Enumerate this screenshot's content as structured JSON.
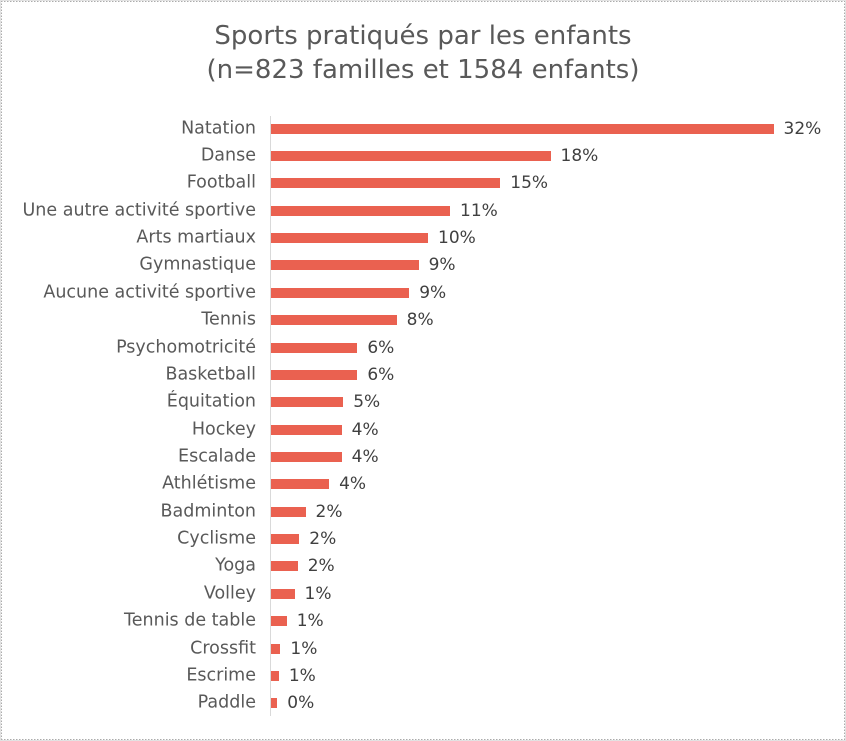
{
  "chart_data": {
    "type": "bar",
    "orientation": "horizontal",
    "title": "Sports pratiqués par les enfants",
    "subtitle": "(n=823 familles et 1584 enfants)",
    "categories": [
      "Natation",
      "Danse",
      "Football",
      "Une autre activité sportive",
      "Arts martiaux",
      "Gymnastique",
      "Aucune activité sportive",
      "Tennis",
      "Psychomotricité",
      "Basketball",
      "Équitation",
      "Hockey",
      "Escalade",
      "Athlétisme",
      "Badminton",
      "Cyclisme",
      "Yoga",
      "Volley",
      "Tennis de table",
      "Crossfit",
      "Escrime",
      "Paddle"
    ],
    "values": [
      32.0,
      17.8,
      14.6,
      11.4,
      10.0,
      9.4,
      8.8,
      8.0,
      5.5,
      5.5,
      4.6,
      4.5,
      4.5,
      3.7,
      2.2,
      1.8,
      1.7,
      1.5,
      1.0,
      0.6,
      0.5,
      0.4
    ],
    "labels": [
      "32%",
      "18%",
      "15%",
      "11%",
      "10%",
      "9%",
      "9%",
      "8%",
      "6%",
      "6%",
      "5%",
      "4%",
      "4%",
      "4%",
      "2%",
      "2%",
      "2%",
      "1%",
      "1%",
      "1%",
      "1%",
      "0%"
    ],
    "xlabel": "",
    "ylabel": "",
    "xlim": [
      0,
      36.6
    ],
    "grid": false,
    "legend": false,
    "bar_color": "#ea6150",
    "axis_color": "#d9d9d9",
    "category_label_color": "#595959",
    "value_label_color": "#404040",
    "title_color": "#595959"
  }
}
